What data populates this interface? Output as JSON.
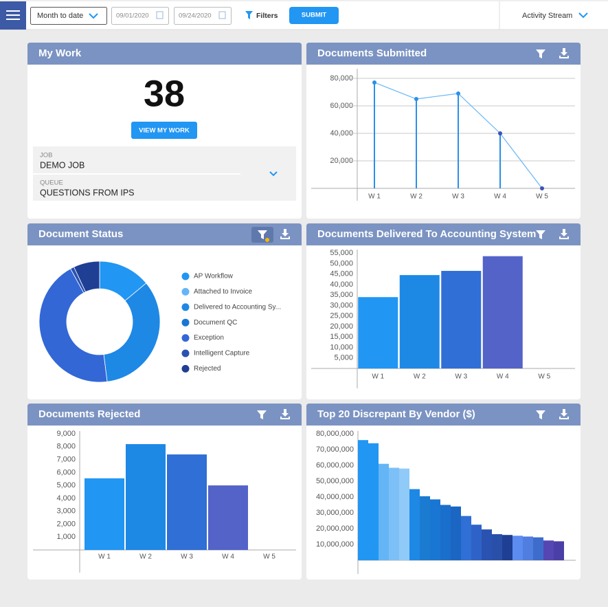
{
  "topbar": {
    "period": "Month to date",
    "start_date": "09/01/2020",
    "end_date": "09/24/2020",
    "filters": "Filters",
    "submit": "SUBMIT",
    "activity": "Activity Stream"
  },
  "panels": [
    {
      "title": "My Work",
      "count": 38,
      "button": "VIEW MY WORK",
      "job_label": "JOB",
      "job": "DEMO JOB",
      "queue_label": "QUEUE",
      "queue": "QUESTIONS FROM IPS"
    },
    {
      "title": "Documents Submitted",
      "chart": {
        "type": "line",
        "categories": [
          "W 1",
          "W 2",
          "W 3",
          "W 4",
          "W 5"
        ],
        "values": [
          77000,
          65000,
          69000,
          40000,
          0
        ],
        "color": "#2a8fe8",
        "ylim": [
          0,
          85000
        ],
        "yticks": [
          {
            "value": 20000,
            "label": "20,000"
          },
          {
            "value": 40000,
            "label": "40,000"
          },
          {
            "value": 60000,
            "label": "60,000"
          },
          {
            "value": 80000,
            "label": "80,000"
          }
        ],
        "grid": true
      }
    },
    {
      "title": "Document Status",
      "chart": {
        "type": "donut",
        "categories": [
          "AP Workflow",
          "Attached to Invoice",
          "Delivered to Accounting Sy...",
          "Document QC",
          "Exception",
          "Intelligent Capture",
          "Rejected"
        ],
        "values": [
          14,
          0,
          34,
          0,
          44,
          1,
          7
        ],
        "colors": [
          "#2196f3",
          "#64b5f6",
          "#1e88e5",
          "#1976d2",
          "#3367d6",
          "#2a52b0",
          "#1f3f94"
        ]
      }
    },
    {
      "title": "Documents Delivered To Accounting System",
      "chart": {
        "type": "bar",
        "categories": [
          "W 1",
          "W 2",
          "W 3",
          "W 4",
          "W 5"
        ],
        "values": [
          34000,
          44500,
          46500,
          53500,
          0
        ],
        "colors": [
          "#2196f3",
          "#1e88e5",
          "#2f6fd6",
          "#5363c8",
          "#5363c8"
        ],
        "ylim": [
          0,
          57000
        ],
        "yticks": [
          {
            "value": 5000,
            "label": "5,000"
          },
          {
            "value": 10000,
            "label": "10,000"
          },
          {
            "value": 15000,
            "label": "15,000"
          },
          {
            "value": 20000,
            "label": "20,000"
          },
          {
            "value": 25000,
            "label": "25,000"
          },
          {
            "value": 30000,
            "label": "30,000"
          },
          {
            "value": 35000,
            "label": "35,000"
          },
          {
            "value": 40000,
            "label": "40,000"
          },
          {
            "value": 45000,
            "label": "45,000"
          },
          {
            "value": 50000,
            "label": "50,000"
          },
          {
            "value": 55000,
            "label": "55,000"
          }
        ],
        "grid": false
      }
    },
    {
      "title": "Documents Rejected",
      "chart": {
        "type": "bar",
        "categories": [
          "W 1",
          "W 2",
          "W 3",
          "W 4",
          "W 5"
        ],
        "values": [
          5550,
          8200,
          7400,
          5000,
          0
        ],
        "colors": [
          "#2196f3",
          "#1e88e5",
          "#2f6fd6",
          "#5363c8",
          "#5363c8"
        ],
        "ylim": [
          0,
          9300
        ],
        "yticks": [
          {
            "value": 1000,
            "label": "1,000"
          },
          {
            "value": 2000,
            "label": "2,000"
          },
          {
            "value": 3000,
            "label": "3,000"
          },
          {
            "value": 4000,
            "label": "4,000"
          },
          {
            "value": 5000,
            "label": "5,000"
          },
          {
            "value": 6000,
            "label": "6,000"
          },
          {
            "value": 7000,
            "label": "7,000"
          },
          {
            "value": 8000,
            "label": "8,000"
          },
          {
            "value": 9000,
            "label": "9,000"
          }
        ],
        "grid": false
      }
    },
    {
      "title": "Top 20 Discrepant By Vendor ($)",
      "chart": {
        "type": "bar",
        "values": [
          76000000,
          74000000,
          61000000,
          58500000,
          58000000,
          45000000,
          40500000,
          38500000,
          35000000,
          34000000,
          28000000,
          22500000,
          19500000,
          16500000,
          16000000,
          15500000,
          15000000,
          14500000,
          12500000,
          12000000
        ],
        "colors": [
          "#2196f3",
          "#2196f3",
          "#64b5f6",
          "#7cc0f7",
          "#90caf9",
          "#1e88e5",
          "#1a7bd0",
          "#1976d2",
          "#1a6fcc",
          "#1a66c2",
          "#2f6fd6",
          "#2f62c8",
          "#2a52b0",
          "#2a4fa8",
          "#1f3f94",
          "#5c8cf0",
          "#4f7ee0",
          "#3e6ccd",
          "#5546b3",
          "#4a3fa6"
        ],
        "ylim": [
          0,
          81000000
        ],
        "yticks": [
          {
            "value": 10000000,
            "label": "10,000,000"
          },
          {
            "value": 20000000,
            "label": "20,000,000"
          },
          {
            "value": 30000000,
            "label": "30,000,000"
          },
          {
            "value": 40000000,
            "label": "40,000,000"
          },
          {
            "value": 50000000,
            "label": "50,000,000"
          },
          {
            "value": 60000000,
            "label": "60,000,000"
          },
          {
            "value": 70000000,
            "label": "70,000,000"
          },
          {
            "value": 80000000,
            "label": "80,000,000"
          }
        ],
        "grid": false
      }
    }
  ]
}
